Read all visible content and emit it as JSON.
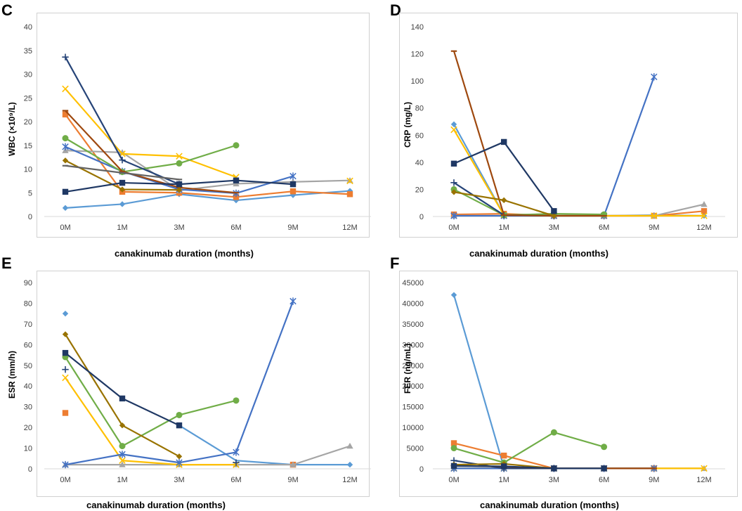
{
  "colors": {
    "c1": "#5B9BD5",
    "c2": "#ED7D31",
    "c3": "#A5A5A5",
    "c4": "#FFC000",
    "c5": "#264478",
    "c6": "#70AD47",
    "c7": "#9E480E",
    "c8": "#997300",
    "c9": "#43682B",
    "c10": "#4472C4",
    "c11": "#636363",
    "c12": "#1F3864"
  },
  "chart_data": [
    {
      "id": "C",
      "type": "line",
      "panel_letter": "C",
      "ylabel": "WBC (×10⁹/L)",
      "xlabel": "canakinumab duration (months)",
      "categories": [
        "0M",
        "1M",
        "3M",
        "6M",
        "9M",
        "12M"
      ],
      "ylim": [
        0,
        40
      ],
      "yticks": [
        0,
        5,
        10,
        15,
        20,
        25,
        30,
        35,
        40
      ],
      "series": [
        {
          "color": "c1",
          "marker": "diamond",
          "values": [
            1.8,
            2.6,
            4.7,
            3.4,
            4.5,
            5.4
          ]
        },
        {
          "color": "c2",
          "marker": "square",
          "values": [
            21.5,
            5.2,
            5.0,
            4.1,
            5.3,
            4.7
          ]
        },
        {
          "color": "c3",
          "marker": "triangle",
          "values": [
            13.9,
            13.5,
            5.5,
            6.9,
            7.3,
            7.6
          ]
        },
        {
          "color": "c4",
          "marker": "x",
          "values": [
            26.9,
            13.2,
            12.7,
            8.3,
            null,
            7.5
          ]
        },
        {
          "color": "c10",
          "marker": "star",
          "values": [
            14.7,
            9.5,
            5.7,
            4.9,
            8.5,
            null
          ]
        },
        {
          "color": "c6",
          "marker": "circle",
          "values": [
            16.5,
            9.4,
            11.2,
            15.0,
            null,
            null
          ]
        },
        {
          "color": "c5",
          "marker": "plus",
          "values": [
            33.6,
            11.9,
            6.8,
            null,
            null,
            null
          ]
        },
        {
          "color": "c7",
          "marker": "dash",
          "values": [
            22.3,
            9.5,
            6.1,
            5.0,
            null,
            null
          ]
        },
        {
          "color": "c8",
          "marker": "diamond",
          "values": [
            11.8,
            5.7,
            5.6,
            null,
            null,
            null
          ]
        },
        {
          "color": "c11",
          "marker": "dash",
          "values": [
            10.7,
            9.2,
            7.8,
            null,
            null,
            null
          ]
        },
        {
          "color": "c12",
          "marker": "square",
          "values": [
            5.2,
            7.1,
            6.8,
            7.6,
            6.8,
            null
          ]
        }
      ]
    },
    {
      "id": "D",
      "type": "line",
      "panel_letter": "D",
      "ylabel": "CRP (mg/L)",
      "xlabel": "canakinumab duration (months)",
      "categories": [
        "0M",
        "1M",
        "3M",
        "6M",
        "9M",
        "12M"
      ],
      "ylim": [
        0,
        140
      ],
      "yticks": [
        0,
        20,
        40,
        60,
        80,
        100,
        120,
        140
      ],
      "series": [
        {
          "color": "c1",
          "marker": "diamond",
          "values": [
            68,
            1,
            0.5,
            0.5,
            1,
            0.5
          ]
        },
        {
          "color": "c2",
          "marker": "square",
          "values": [
            1.5,
            2,
            0.5,
            0.5,
            0.5,
            4
          ]
        },
        {
          "color": "c3",
          "marker": "triangle",
          "values": [
            0.5,
            0.5,
            0.5,
            0.5,
            0.5,
            9
          ]
        },
        {
          "color": "c4",
          "marker": "x",
          "values": [
            64,
            1,
            0.5,
            0.5,
            0.5,
            0.5
          ]
        },
        {
          "color": "c10",
          "marker": "star",
          "values": [
            0.5,
            0.5,
            0.5,
            0.5,
            103,
            null
          ]
        },
        {
          "color": "c6",
          "marker": "circle",
          "values": [
            20,
            1,
            2,
            1.5,
            null,
            null
          ]
        },
        {
          "color": "c5",
          "marker": "plus",
          "values": [
            25,
            1,
            0.5,
            null,
            null,
            null
          ]
        },
        {
          "color": "c7",
          "marker": "dash",
          "values": [
            122,
            1,
            0.5,
            0.5,
            null,
            null
          ]
        },
        {
          "color": "c8",
          "marker": "diamond",
          "values": [
            18,
            12,
            0.5,
            null,
            null,
            null
          ]
        },
        {
          "color": "c12",
          "marker": "square",
          "values": [
            39,
            55,
            4,
            null,
            null,
            null
          ]
        }
      ]
    },
    {
      "id": "E",
      "type": "line",
      "panel_letter": "E",
      "ylabel": "ESR (mm/h)",
      "xlabel": "canakinumab duration (months)",
      "categories": [
        "0M",
        "1M",
        "3M",
        "6M",
        "9M",
        "12M"
      ],
      "ylim": [
        0,
        90
      ],
      "yticks": [
        0,
        10,
        20,
        30,
        40,
        50,
        60,
        70,
        80,
        90
      ],
      "series": [
        {
          "color": "c1",
          "marker": "diamond",
          "values": [
            75,
            null,
            null,
            null,
            null,
            2
          ]
        },
        {
          "color": "c1",
          "marker": "none",
          "values": [
            null,
            null,
            21,
            4,
            2,
            2
          ]
        },
        {
          "color": "c2",
          "marker": "square",
          "values": [
            27,
            null,
            null,
            null,
            2,
            null
          ]
        },
        {
          "color": "c3",
          "marker": "triangle",
          "values": [
            2,
            2,
            2,
            2,
            2,
            11
          ]
        },
        {
          "color": "c4",
          "marker": "x",
          "values": [
            44,
            4,
            2,
            2,
            null,
            null
          ]
        },
        {
          "color": "c10",
          "marker": "star",
          "values": [
            2,
            7,
            3,
            8,
            81,
            null
          ]
        },
        {
          "color": "c6",
          "marker": "circle",
          "values": [
            54,
            11,
            26,
            33,
            null,
            null
          ]
        },
        {
          "color": "c5",
          "marker": "plus",
          "values": [
            48,
            null,
            null,
            3,
            null,
            null
          ]
        },
        {
          "color": "c8",
          "marker": "diamond",
          "values": [
            65,
            21,
            6,
            null,
            null,
            null
          ]
        },
        {
          "color": "c12",
          "marker": "square",
          "values": [
            56,
            34,
            21,
            null,
            null,
            null
          ]
        }
      ]
    },
    {
      "id": "F",
      "type": "line",
      "panel_letter": "F",
      "ylabel": "FER (ng/mL)",
      "xlabel": "canakinumab duration (months)",
      "categories": [
        "0M",
        "1M",
        "3M",
        "6M",
        "9M",
        "12M"
      ],
      "ylim": [
        0,
        45000
      ],
      "yticks": [
        0,
        5000,
        10000,
        15000,
        20000,
        25000,
        30000,
        35000,
        40000,
        45000
      ],
      "series": [
        {
          "color": "c1",
          "marker": "diamond",
          "values": [
            42000,
            300,
            100,
            100,
            100,
            null
          ]
        },
        {
          "color": "c2",
          "marker": "square",
          "values": [
            6200,
            3200,
            100,
            100,
            100,
            null
          ]
        },
        {
          "color": "c3",
          "marker": "triangle",
          "values": [
            100,
            100,
            100,
            100,
            100,
            100
          ]
        },
        {
          "color": "c4",
          "marker": "x",
          "values": [
            100,
            100,
            100,
            100,
            100,
            100
          ]
        },
        {
          "color": "c10",
          "marker": "star",
          "values": [
            100,
            100,
            100,
            100,
            100,
            null
          ]
        },
        {
          "color": "c6",
          "marker": "circle",
          "values": [
            5000,
            1500,
            8800,
            5300,
            null,
            null
          ]
        },
        {
          "color": "c5",
          "marker": "plus",
          "values": [
            2000,
            100,
            100,
            null,
            null,
            null
          ]
        },
        {
          "color": "c7",
          "marker": "dash",
          "values": [
            800,
            500,
            100,
            100,
            100,
            null
          ]
        },
        {
          "color": "c8",
          "marker": "diamond",
          "values": [
            1000,
            1200,
            100,
            null,
            null,
            null
          ]
        },
        {
          "color": "c12",
          "marker": "square",
          "values": [
            700,
            600,
            100,
            100,
            null,
            null
          ]
        }
      ]
    }
  ]
}
